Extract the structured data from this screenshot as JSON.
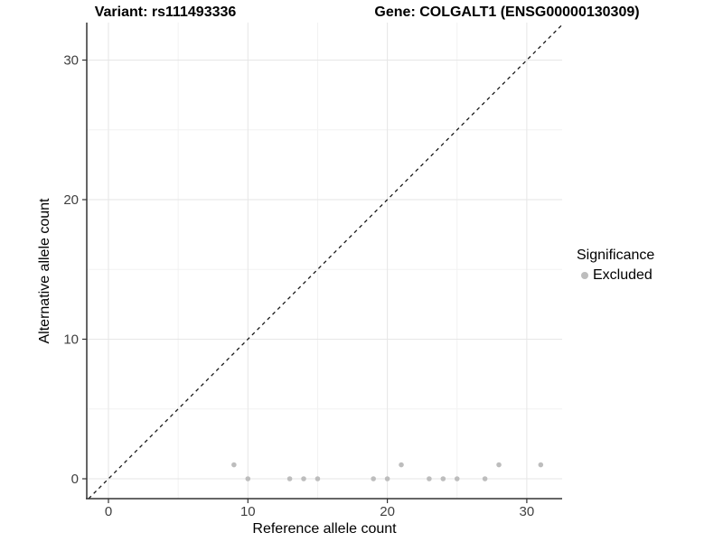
{
  "titles": {
    "variant": "Variant: rs111493336",
    "gene": "Gene: COLGALT1 (ENSG00000130309)"
  },
  "chart_data": {
    "type": "scatter",
    "xlabel": "Reference allele count",
    "ylabel": "Alternative allele count",
    "x_ticks": [
      0,
      10,
      20,
      30
    ],
    "y_ticks": [
      0,
      10,
      20,
      30
    ],
    "x_minor_ticks": [
      5,
      15,
      25
    ],
    "y_minor_ticks": [
      5,
      15,
      25
    ],
    "xlim": [
      -1.6,
      32.6
    ],
    "ylim": [
      -1.5,
      32.7
    ],
    "grid": "on",
    "identity_line": {
      "type": "dashed",
      "slope": 1,
      "intercept": 0,
      "color": "#1a1a1a"
    },
    "series": [
      {
        "name": "Excluded",
        "color": "#bdbdbd",
        "points": [
          [
            9,
            1
          ],
          [
            10,
            0
          ],
          [
            13,
            0
          ],
          [
            14,
            0
          ],
          [
            15,
            0
          ],
          [
            19,
            0
          ],
          [
            20,
            0
          ],
          [
            21,
            1
          ],
          [
            23,
            0
          ],
          [
            24,
            0
          ],
          [
            25,
            0
          ],
          [
            27,
            0
          ],
          [
            28,
            1
          ],
          [
            31,
            1
          ]
        ]
      }
    ],
    "legend": {
      "title": "Significance",
      "position": "right",
      "entries": [
        {
          "label": "Excluded",
          "color": "#bdbdbd"
        }
      ]
    }
  },
  "colors": {
    "background": "#ffffff",
    "grid_major": "#e6e6e6",
    "grid_minor": "#f2f2f2",
    "axis_line": "#333333",
    "tick_label": "#404040",
    "point": "#bdbdbd",
    "dashed_line": "#1a1a1a"
  }
}
